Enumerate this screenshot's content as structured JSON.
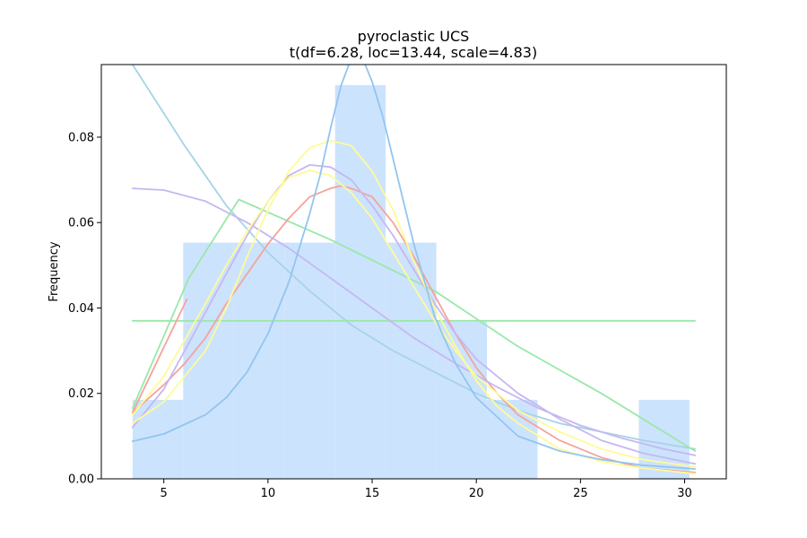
{
  "chart_data": {
    "type": "bar",
    "title": "pyroclastic UCS",
    "subtitle": "t(df=6.28, loc=13.44, scale=4.83)",
    "xlabel": "",
    "ylabel": "Frequency",
    "xlim": [
      2.0,
      32.0
    ],
    "ylim": [
      0.0,
      0.097
    ],
    "xticks": [
      5,
      10,
      15,
      20,
      25,
      30
    ],
    "yticks": [
      0.0,
      0.02,
      0.04,
      0.06,
      0.08
    ],
    "ytick_labels": [
      "0.00",
      "0.02",
      "0.04",
      "0.06",
      "0.08"
    ],
    "grid": false,
    "histogram": {
      "color": "#cce3fd",
      "bin_edges": [
        3.5,
        5.93,
        8.36,
        10.79,
        13.22,
        15.65,
        18.08,
        20.51,
        22.94,
        25.37,
        27.8,
        30.23
      ],
      "values": [
        0.0185,
        0.0553,
        0.0553,
        0.0553,
        0.0922,
        0.0553,
        0.0368,
        0.0185,
        0.0,
        0.0,
        0.0185
      ]
    },
    "series": [
      {
        "color": "#a6d3e6",
        "points": [
          [
            3.5,
            0.097
          ],
          [
            6,
            0.078
          ],
          [
            8,
            0.064
          ],
          [
            10,
            0.053
          ],
          [
            12,
            0.044
          ],
          [
            14,
            0.036
          ],
          [
            16,
            0.03
          ],
          [
            18,
            0.025
          ],
          [
            20,
            0.02
          ],
          [
            22,
            0.016
          ],
          [
            24,
            0.013
          ],
          [
            26,
            0.011
          ],
          [
            28,
            0.009
          ],
          [
            30.5,
            0.007
          ]
        ]
      },
      {
        "color": "#99e8a8",
        "points": [
          [
            3.5,
            0.0165
          ],
          [
            6.2,
            0.047
          ],
          [
            8.6,
            0.0654
          ],
          [
            13,
            0.056
          ],
          [
            18,
            0.044
          ],
          [
            22,
            0.031
          ],
          [
            26,
            0.02
          ],
          [
            30.5,
            0.0065
          ]
        ]
      },
      {
        "color": "#99e8a8",
        "points": [
          [
            3.5,
            0.037
          ],
          [
            30.5,
            0.037
          ]
        ]
      },
      {
        "color": "#f4a39a",
        "points": [
          [
            3.5,
            0.0155
          ],
          [
            6.1,
            0.042
          ]
        ]
      },
      {
        "color": "#f4a39a",
        "points": [
          [
            3.5,
            0.0155
          ],
          [
            5,
            0.022
          ],
          [
            6,
            0.027
          ],
          [
            7,
            0.033
          ],
          [
            8,
            0.041
          ],
          [
            9,
            0.048
          ],
          [
            10,
            0.055
          ],
          [
            11,
            0.061
          ],
          [
            12,
            0.066
          ],
          [
            13,
            0.068
          ],
          [
            13.5,
            0.0686
          ],
          [
            14,
            0.068
          ],
          [
            15,
            0.066
          ],
          [
            16,
            0.06
          ],
          [
            17,
            0.052
          ],
          [
            18,
            0.043
          ],
          [
            19,
            0.034
          ],
          [
            20,
            0.026
          ],
          [
            21,
            0.02
          ],
          [
            22,
            0.015
          ],
          [
            24,
            0.009
          ],
          [
            26,
            0.005
          ],
          [
            28,
            0.0025
          ],
          [
            30.5,
            0.0015
          ]
        ]
      },
      {
        "color": "#c6b7f2",
        "points": [
          [
            3.5,
            0.068
          ],
          [
            5,
            0.0676
          ],
          [
            7,
            0.065
          ],
          [
            9,
            0.06
          ],
          [
            11,
            0.054
          ],
          [
            13,
            0.047
          ],
          [
            15,
            0.04
          ],
          [
            17,
            0.033
          ],
          [
            19,
            0.027
          ],
          [
            21,
            0.0215
          ],
          [
            23,
            0.0165
          ],
          [
            25,
            0.0125
          ],
          [
            27,
            0.0095
          ],
          [
            29,
            0.007
          ],
          [
            30.5,
            0.0055
          ]
        ]
      },
      {
        "color": "#c6b7f2",
        "points": [
          [
            3.5,
            0.012
          ],
          [
            5,
            0.021
          ],
          [
            7,
            0.039
          ],
          [
            8,
            0.048
          ],
          [
            9,
            0.057
          ],
          [
            10,
            0.065
          ],
          [
            11,
            0.071
          ],
          [
            12,
            0.0735
          ],
          [
            13,
            0.073
          ],
          [
            14,
            0.07
          ],
          [
            15,
            0.064
          ],
          [
            16,
            0.057
          ],
          [
            17,
            0.049
          ],
          [
            18,
            0.041
          ],
          [
            19,
            0.034
          ],
          [
            20,
            0.028
          ],
          [
            22,
            0.02
          ],
          [
            24,
            0.014
          ],
          [
            26,
            0.009
          ],
          [
            28,
            0.006
          ],
          [
            30.5,
            0.0035
          ]
        ]
      },
      {
        "color": "#fefb97",
        "points": [
          [
            3.5,
            0.013
          ],
          [
            5,
            0.018
          ],
          [
            7,
            0.03
          ],
          [
            8,
            0.04
          ],
          [
            9,
            0.052
          ],
          [
            10,
            0.063
          ],
          [
            11,
            0.072
          ],
          [
            12,
            0.0775
          ],
          [
            13,
            0.0792
          ],
          [
            14,
            0.078
          ],
          [
            15,
            0.072
          ],
          [
            16,
            0.063
          ],
          [
            17,
            0.051
          ],
          [
            18,
            0.04
          ],
          [
            19,
            0.031
          ],
          [
            20,
            0.023
          ],
          [
            21,
            0.017
          ],
          [
            22,
            0.013
          ],
          [
            24,
            0.007
          ],
          [
            26,
            0.004
          ],
          [
            28,
            0.0025
          ],
          [
            30.5,
            0.0012
          ]
        ]
      },
      {
        "color": "#fefb97",
        "points": [
          [
            3.5,
            0.015
          ],
          [
            5,
            0.024
          ],
          [
            7,
            0.041
          ],
          [
            8,
            0.05
          ],
          [
            9,
            0.058
          ],
          [
            10,
            0.065
          ],
          [
            11,
            0.0705
          ],
          [
            12,
            0.0722
          ],
          [
            13,
            0.071
          ],
          [
            14,
            0.067
          ],
          [
            15,
            0.061
          ],
          [
            16,
            0.053
          ],
          [
            17,
            0.045
          ],
          [
            18,
            0.037
          ],
          [
            19,
            0.03
          ],
          [
            20,
            0.024
          ],
          [
            22,
            0.016
          ],
          [
            24,
            0.011
          ],
          [
            26,
            0.007
          ],
          [
            28,
            0.0045
          ],
          [
            30.5,
            0.0028
          ]
        ]
      },
      {
        "color": "#92c5f0",
        "points": [
          [
            3.5,
            0.0088
          ],
          [
            5,
            0.0105
          ],
          [
            7,
            0.015
          ],
          [
            8,
            0.019
          ],
          [
            9,
            0.025
          ],
          [
            10,
            0.034
          ],
          [
            11,
            0.046
          ],
          [
            12,
            0.062
          ],
          [
            12.5,
            0.071
          ],
          [
            13,
            0.082
          ],
          [
            13.5,
            0.092
          ],
          [
            14,
            0.0985
          ],
          [
            14.5,
            0.099
          ],
          [
            15,
            0.093
          ],
          [
            15.5,
            0.085
          ],
          [
            16,
            0.075
          ],
          [
            17,
            0.055
          ],
          [
            18,
            0.038
          ],
          [
            19,
            0.027
          ],
          [
            20,
            0.019
          ],
          [
            22,
            0.01
          ],
          [
            24,
            0.0065
          ],
          [
            26,
            0.0045
          ],
          [
            28,
            0.0032
          ],
          [
            30.5,
            0.0023
          ]
        ]
      }
    ]
  }
}
